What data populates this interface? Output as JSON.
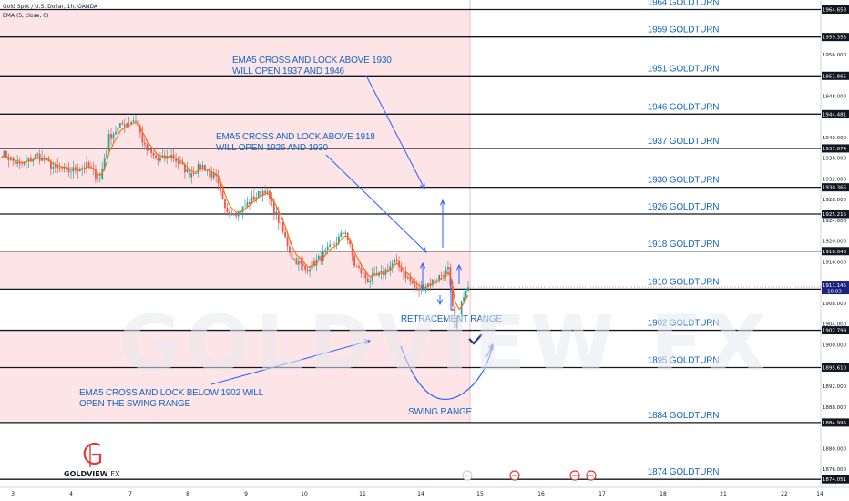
{
  "header": {
    "symbol": "Gold Spot / U.S. Dollar, 1h, OANDA",
    "indicator": "EMA (5, close, 0)",
    "currency": "USD"
  },
  "watermark": "GOLDVIEW FX",
  "logo": {
    "brand": "GOLDVIEW",
    "suffix": "FX",
    "mark": "G"
  },
  "colors": {
    "up": "#26a69a",
    "down": "#ef5350",
    "ema": "#ff6d00",
    "annotation": "#2962ff",
    "zone": "#fde4e7",
    "level_line": "#131722"
  },
  "chart_data": {
    "type": "candlestick",
    "title": "",
    "xlabel": "",
    "ylabel": "",
    "ylim": [
      1872.5,
      1966.5
    ],
    "price_axis_ticks": [
      "1956.000",
      "1952.000",
      "1948.000",
      "1940.000",
      "1936.000",
      "1932.000",
      "1928.000",
      "1924.000",
      "1920.000",
      "1916.000",
      "1912.000",
      "1908.000",
      "1904.000",
      "1900.000",
      "1892.000",
      "1888.000",
      "1880.000",
      "1876.000"
    ],
    "x_ticks": [
      "3",
      "4",
      "7",
      "8",
      "9",
      "10",
      "11",
      "14",
      "15",
      "16",
      "17",
      "18",
      "21",
      "22",
      "14"
    ],
    "current_price": {
      "value": "1911.145",
      "countdown": "10:03"
    },
    "levels": [
      {
        "price": 1964.658,
        "price_label": "1964.658",
        "label": "1964 GOLDTURN"
      },
      {
        "price": 1959.353,
        "price_label": "1959.353",
        "label": "1959 GOLDTURN"
      },
      {
        "price": 1951.865,
        "price_label": "1951.865",
        "label": "1951 GOLDTURN"
      },
      {
        "price": 1944.481,
        "price_label": "1944.481",
        "label": "1946 GOLDTURN"
      },
      {
        "price": 1937.874,
        "price_label": "1937.874",
        "label": "1937 GOLDTURN"
      },
      {
        "price": 1930.365,
        "price_label": "1930.365",
        "label": "1930 GOLDTURN"
      },
      {
        "price": 1925.215,
        "price_label": "1925.215",
        "label": "1926 GOLDTURN"
      },
      {
        "price": 1918.048,
        "price_label": "1918.048",
        "label": "1918 GOLDTURN"
      },
      {
        "price": 1910.743,
        "price_label": "1910.743",
        "label": "1910 GOLDTURN"
      },
      {
        "price": 1902.799,
        "price_label": "1902.799",
        "label": "1902 GOLDTURN"
      },
      {
        "price": 1895.61,
        "price_label": "1895.610",
        "label": "1895 GOLDTURN"
      },
      {
        "price": 1884.995,
        "price_label": "1884.995",
        "label": "1884 GOLDTURN"
      },
      {
        "price": 1874.051,
        "price_label": "1874.051",
        "label": "1874 GOLDTURN"
      }
    ],
    "annotations": [
      {
        "lines": [
          "EMA5 CROSS AND LOCK ABOVE 1930",
          "WILL OPEN 1937 AND 1946"
        ]
      },
      {
        "lines": [
          "EMA5 CROSS AND LOCK ABOVE 1918",
          "WILL OPEN 1926 AND 1930"
        ]
      },
      {
        "lines": [
          "EMA5 CROSS AND LOCK BELOW 1902 WILL",
          "OPEN THE SWING RANGE"
        ]
      },
      {
        "lines": [
          "RETRACEMENT RANGE"
        ]
      },
      {
        "lines": [
          "SWING RANGE"
        ]
      }
    ],
    "series": [
      {
        "name": "",
        "key_points": [
          {
            "t": 0,
            "p": 1937.0
          },
          {
            "t": 8,
            "p": 1934.5
          },
          {
            "t": 16,
            "p": 1936.5
          },
          {
            "t": 24,
            "p": 1934.0
          },
          {
            "t": 30,
            "p": 1933.5
          },
          {
            "t": 38,
            "p": 1934.5
          },
          {
            "t": 44,
            "p": 1932.0
          },
          {
            "t": 48,
            "p": 1940.0
          },
          {
            "t": 54,
            "p": 1942.5
          },
          {
            "t": 60,
            "p": 1943.5
          },
          {
            "t": 64,
            "p": 1938.0
          },
          {
            "t": 70,
            "p": 1935.5
          },
          {
            "t": 76,
            "p": 1936.5
          },
          {
            "t": 84,
            "p": 1933.0
          },
          {
            "t": 90,
            "p": 1934.5
          },
          {
            "t": 96,
            "p": 1932.0
          },
          {
            "t": 100,
            "p": 1926.0
          },
          {
            "t": 106,
            "p": 1925.5
          },
          {
            "t": 112,
            "p": 1928.0
          },
          {
            "t": 118,
            "p": 1930.0
          },
          {
            "t": 124,
            "p": 1924.0
          },
          {
            "t": 130,
            "p": 1917.0
          },
          {
            "t": 136,
            "p": 1914.5
          },
          {
            "t": 142,
            "p": 1916.5
          },
          {
            "t": 148,
            "p": 1919.0
          },
          {
            "t": 154,
            "p": 1922.0
          },
          {
            "t": 158,
            "p": 1915.5
          },
          {
            "t": 164,
            "p": 1912.5
          },
          {
            "t": 170,
            "p": 1913.5
          },
          {
            "t": 176,
            "p": 1916.0
          },
          {
            "t": 180,
            "p": 1914.0
          },
          {
            "t": 186,
            "p": 1910.5
          },
          {
            "t": 194,
            "p": 1912.5
          },
          {
            "t": 200,
            "p": 1914.5
          },
          {
            "t": 203,
            "p": 1903.0
          },
          {
            "t": 206,
            "p": 1908.0
          },
          {
            "t": 209,
            "p": 1911.1
          }
        ]
      }
    ]
  }
}
